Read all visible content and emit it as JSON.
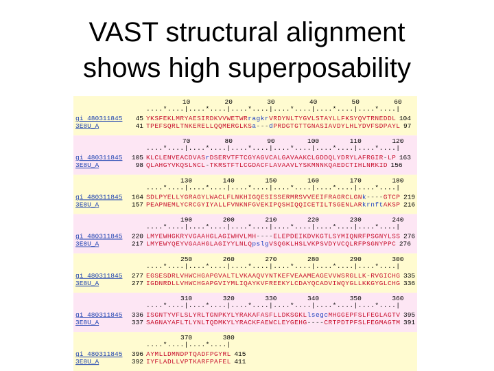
{
  "header": {
    "title": [
      "VAST structural alignment",
      "shows high superposability"
    ]
  },
  "alignment": {
    "blocks": [
      {
        "numbers": [
          10,
          20,
          30,
          40,
          50,
          60
        ],
        "ruler": "....*....|....*....|....*....|....*....|....*....|....*....|",
        "rows": [
          {
            "id": "gi 480311845",
            "start": 45,
            "seq": "YKSFEKLMRYAESIRDKVVWETWRragkrVRDYNLTYGVLSTAYLLFKSYQVTRNEDDL",
            "end": 104
          },
          {
            "id": "3E8U_A",
            "start": 41,
            "seq": "TPEFSQRLTNKERELLQQMERGLKSa---dPRDGTGTTGNASIAVDYLHLYDVFSDPAYL",
            "end": 97
          }
        ]
      },
      {
        "numbers": [
          70,
          80,
          90,
          100,
          110,
          120
        ],
        "ruler": "....*....|....*....|....*....|....*....|....*....|....*....|",
        "rows": [
          {
            "id": "gi 480311845",
            "start": 105,
            "seq": "KLCLENVEACDVASrDSERVTFTCGYAGVCALGAVAAKCLGDDQLYDRYLAFRGIR-LP",
            "end": 163
          },
          {
            "id": "3E8U_A",
            "start": 98,
            "seq": "QLAHGYVKQSLNCL-TKRSTFTLCGDACFLAVAAVLYSKMNNKQAEDCTIHLNRKID",
            "end": 156
          }
        ]
      },
      {
        "numbers": [
          130,
          140,
          150,
          160,
          170,
          180
        ],
        "ruler": "....*....|....*....|....*....|....*....|....*....|....*....|",
        "rows": [
          {
            "id": "gi 480311845",
            "start": 164,
            "seq": "SDLPYELLYGRAGYLWACLFLNKHIGQESISSERMRSVVEEIFRAGRCLGNk----GTCP",
            "end": 219
          },
          {
            "id": "3E8U_A",
            "start": 157,
            "seq": "PEAPNEMLYCRCGYIYALLFVNKNFGVEKIPQSHIQQICETILTSGENLARkrnftAKSP",
            "end": 216
          }
        ]
      },
      {
        "numbers": [
          190,
          200,
          210,
          220,
          230,
          240
        ],
        "ruler": "....*....|....*....|....*....|....*....|....*....|....*....|",
        "rows": [
          {
            "id": "gi 480311845",
            "start": 220,
            "seq": "LMYEWHGKRYVGAAHGLAGIWHVLMH----ELEPDEIKDVKGTLSYMIQNRFPSGNYLSS",
            "end": 276
          },
          {
            "id": "3E8U_A",
            "start": 217,
            "seq": "LMYEWYQEYVGAAHGLAGIYYLNLQpslgVSQGKLHSLVKPSVDYVCQLRFPSGNYPPC",
            "end": 276
          }
        ]
      },
      {
        "numbers": [
          250,
          260,
          270,
          280,
          290,
          300
        ],
        "ruler": "....*....|....*....|....*....|....*....|....*....|....*....|",
        "rows": [
          {
            "id": "gi 480311845",
            "start": 277,
            "seq": "EGSESDRLVHWCHGAPGVALTLVKAAQVYNTKEFVEAAMEAGEVVWSRGLLK-RVGICHG",
            "end": 335
          },
          {
            "id": "3E8U_A",
            "start": 277,
            "seq": "IGDNRDLLVHWCHGAPGVIYMLIQAYKVFREEKYLCDAYQCADVIWQYGLLKKGYGLCHG",
            "end": 336
          }
        ]
      },
      {
        "numbers": [
          310,
          320,
          330,
          340,
          350,
          360
        ],
        "ruler": "....*....|....*....|....*....|....*....|....*....|....*....|",
        "rows": [
          {
            "id": "gi 480311845",
            "start": 336,
            "seq": "ISGNTYVFLSLYRLTGNPKYLYRAKAFASFLLDKSGKLlsegcMHGGEPFSLFEGLAGTV",
            "end": 395
          },
          {
            "id": "3E8U_A",
            "start": 337,
            "seq": "SAGNAYAFLTLYNLTQDMKYLYRACKFAEWCLEYGEHG----CRTPDTPFSLFEGMAGTM",
            "end": 391
          }
        ]
      },
      {
        "numbers": [
          370,
          380
        ],
        "ruler": "....*....|....*....|",
        "rows": [
          {
            "id": "gi 480311845",
            "start": 396,
            "seq": "AYMLLDMNDPTQADFPGYRL",
            "end": 415
          },
          {
            "id": "3E8U_A",
            "start": 392,
            "seq": "IYFLADLLVPTKARFPAFEL",
            "end": 411
          }
        ]
      }
    ]
  }
}
